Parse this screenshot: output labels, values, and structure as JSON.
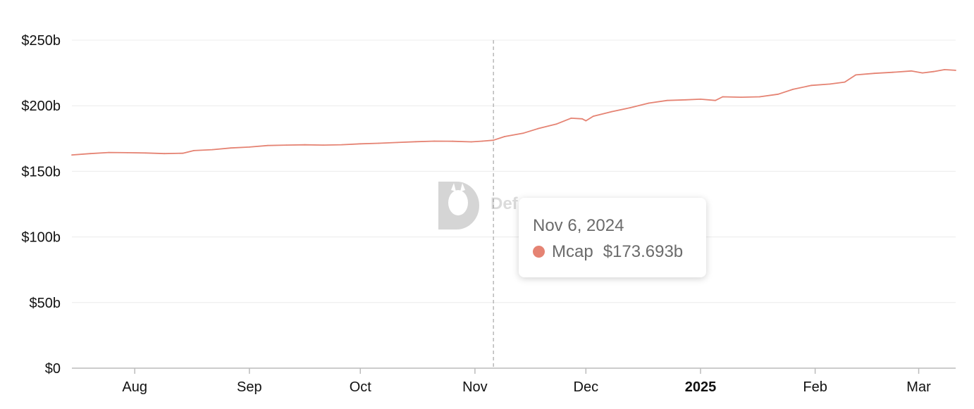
{
  "chart_data": {
    "type": "line",
    "title": "",
    "xlabel": "",
    "ylabel": "",
    "y_ticks": [
      "$0",
      "$50b",
      "$100b",
      "$150b",
      "$200b",
      "$250b"
    ],
    "ylim": [
      0,
      250
    ],
    "x_ticks": [
      {
        "label": "Aug",
        "date": "2024-08-01",
        "bold": false
      },
      {
        "label": "Sep",
        "date": "2024-09-01",
        "bold": false
      },
      {
        "label": "Oct",
        "date": "2024-10-01",
        "bold": false
      },
      {
        "label": "Nov",
        "date": "2024-11-01",
        "bold": false
      },
      {
        "label": "Dec",
        "date": "2024-12-01",
        "bold": false
      },
      {
        "label": "2025",
        "date": "2025-01-01",
        "bold": true
      },
      {
        "label": "Feb",
        "date": "2025-02-01",
        "bold": false
      },
      {
        "label": "Mar",
        "date": "2025-03-01",
        "bold": false
      }
    ],
    "xlim": [
      "2024-07-15",
      "2025-03-11"
    ],
    "grid": "horizontal",
    "series": [
      {
        "name": "Mcap",
        "color": "#e58373",
        "points": [
          [
            "2024-07-15",
            162.5
          ],
          [
            "2024-07-20",
            163.5
          ],
          [
            "2024-07-25",
            164.4
          ],
          [
            "2024-07-30",
            164.2
          ],
          [
            "2024-08-04",
            164.0
          ],
          [
            "2024-08-09",
            163.5
          ],
          [
            "2024-08-14",
            163.8
          ],
          [
            "2024-08-17",
            165.8
          ],
          [
            "2024-08-22",
            166.5
          ],
          [
            "2024-08-27",
            167.8
          ],
          [
            "2024-09-01",
            168.5
          ],
          [
            "2024-09-06",
            169.7
          ],
          [
            "2024-09-11",
            170.0
          ],
          [
            "2024-09-16",
            170.2
          ],
          [
            "2024-09-21",
            170.0
          ],
          [
            "2024-09-26",
            170.3
          ],
          [
            "2024-10-01",
            171.0
          ],
          [
            "2024-10-06",
            171.4
          ],
          [
            "2024-10-11",
            172.0
          ],
          [
            "2024-10-16",
            172.6
          ],
          [
            "2024-10-21",
            173.0
          ],
          [
            "2024-10-26",
            172.9
          ],
          [
            "2024-10-31",
            172.5
          ],
          [
            "2024-11-03",
            173.0
          ],
          [
            "2024-11-06",
            173.693
          ],
          [
            "2024-11-09",
            176.5
          ],
          [
            "2024-11-14",
            179.0
          ],
          [
            "2024-11-18",
            182.5
          ],
          [
            "2024-11-23",
            186.0
          ],
          [
            "2024-11-27",
            190.5
          ],
          [
            "2024-11-30",
            190.0
          ],
          [
            "2024-12-01",
            188.5
          ],
          [
            "2024-12-03",
            192.0
          ],
          [
            "2024-12-08",
            195.5
          ],
          [
            "2024-12-13",
            198.5
          ],
          [
            "2024-12-18",
            202.0
          ],
          [
            "2024-12-23",
            204.0
          ],
          [
            "2024-12-28",
            204.5
          ],
          [
            "2025-01-01",
            205.0
          ],
          [
            "2025-01-05",
            204.0
          ],
          [
            "2025-01-07",
            206.8
          ],
          [
            "2025-01-12",
            206.5
          ],
          [
            "2025-01-17",
            206.8
          ],
          [
            "2025-01-22",
            208.8
          ],
          [
            "2025-01-26",
            212.5
          ],
          [
            "2025-01-31",
            215.5
          ],
          [
            "2025-02-05",
            216.5
          ],
          [
            "2025-02-09",
            218.0
          ],
          [
            "2025-02-12",
            223.5
          ],
          [
            "2025-02-17",
            224.7
          ],
          [
            "2025-02-22",
            225.5
          ],
          [
            "2025-02-27",
            226.5
          ],
          [
            "2025-03-02",
            225.0
          ],
          [
            "2025-03-05",
            226.0
          ],
          [
            "2025-03-08",
            227.5
          ],
          [
            "2025-03-11",
            227.0
          ]
        ]
      }
    ],
    "crosshair_date": "2024-11-06"
  },
  "tooltip": {
    "date": "Nov 6, 2024",
    "series_name": "Mcap",
    "value": "$173.693b",
    "dot_color": "#e58373"
  },
  "watermark": {
    "text": "Def",
    "icon": "llama-logo-icon"
  }
}
